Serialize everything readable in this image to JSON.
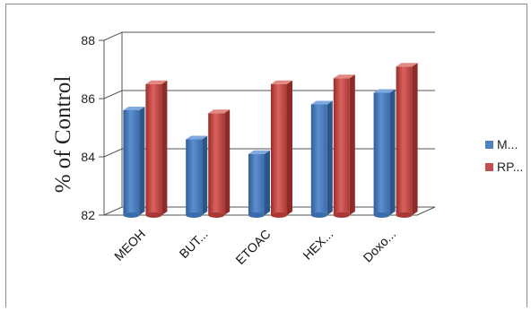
{
  "chart_data": {
    "type": "bar",
    "ylabel": "% of Control",
    "categories": [
      "MEOH",
      "BUT...",
      "ETOAC",
      "HEX...",
      "Doxo..."
    ],
    "series": [
      {
        "name": "M...",
        "color": "#4f81bd",
        "values": [
          85.6,
          84.6,
          84.1,
          85.8,
          86.2
        ]
      },
      {
        "name": "RP...",
        "color": "#c0504d",
        "values": [
          86.5,
          85.5,
          86.5,
          86.7,
          87.1
        ]
      }
    ],
    "ylim": [
      82,
      88
    ],
    "yticks": [
      82,
      84,
      86,
      88
    ],
    "ytick_labels": [
      "82",
      "84",
      "86",
      "88"
    ],
    "grid": true,
    "legend_position": "right"
  }
}
